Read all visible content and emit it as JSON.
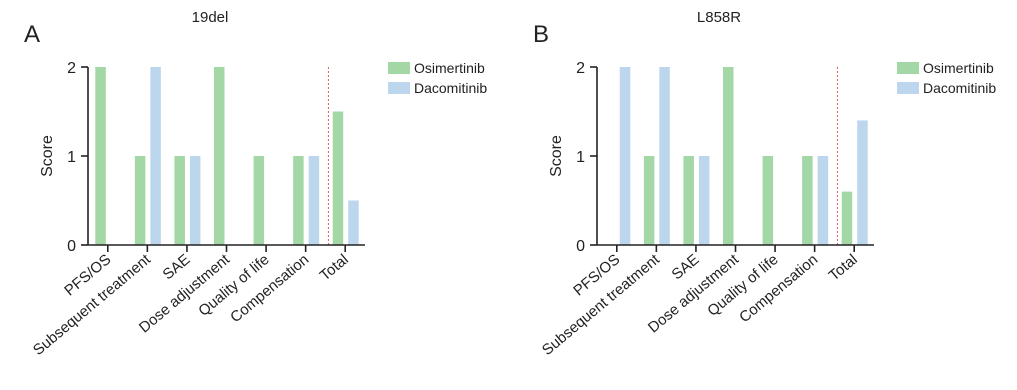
{
  "chart_data": [
    {
      "type": "bar",
      "panel_letter": "A",
      "title": "19del",
      "ylabel": "Score",
      "xlabel": "",
      "ylim": [
        0,
        2
      ],
      "yticks": [
        0,
        1,
        2
      ],
      "categories": [
        "PFS/OS",
        "Subsequent treatment",
        "SAE",
        "Dose adjustment",
        "Quality of life",
        "Compensation",
        "Total"
      ],
      "series": [
        {
          "name": "Osimertinib",
          "color": "#a3d8a6",
          "values": [
            2,
            1,
            1,
            2,
            1,
            1,
            1.5
          ]
        },
        {
          "name": "Dacomitinib",
          "color": "#bcd6ee",
          "values": [
            0,
            2,
            1,
            0,
            0,
            1,
            0.5
          ]
        }
      ],
      "reference_line_before_category": "Total",
      "reference_line_color": "#e05a5a",
      "grid": false,
      "legend_position": "top-right"
    },
    {
      "type": "bar",
      "panel_letter": "B",
      "title": "L858R",
      "ylabel": "Score",
      "xlabel": "",
      "ylim": [
        0,
        2
      ],
      "yticks": [
        0,
        1,
        2
      ],
      "categories": [
        "PFS/OS",
        "Subsequent treatment",
        "SAE",
        "Dose adjustment",
        "Quality of life",
        "Compensation",
        "Total"
      ],
      "series": [
        {
          "name": "Osimertinib",
          "color": "#a3d8a6",
          "values": [
            0,
            1,
            1,
            2,
            1,
            1,
            0.6
          ]
        },
        {
          "name": "Dacomitinib",
          "color": "#bcd6ee",
          "values": [
            2,
            2,
            1,
            0,
            0,
            1,
            1.4
          ]
        }
      ],
      "reference_line_before_category": "Total",
      "reference_line_color": "#e05a5a",
      "grid": false,
      "legend_position": "top-right"
    }
  ]
}
